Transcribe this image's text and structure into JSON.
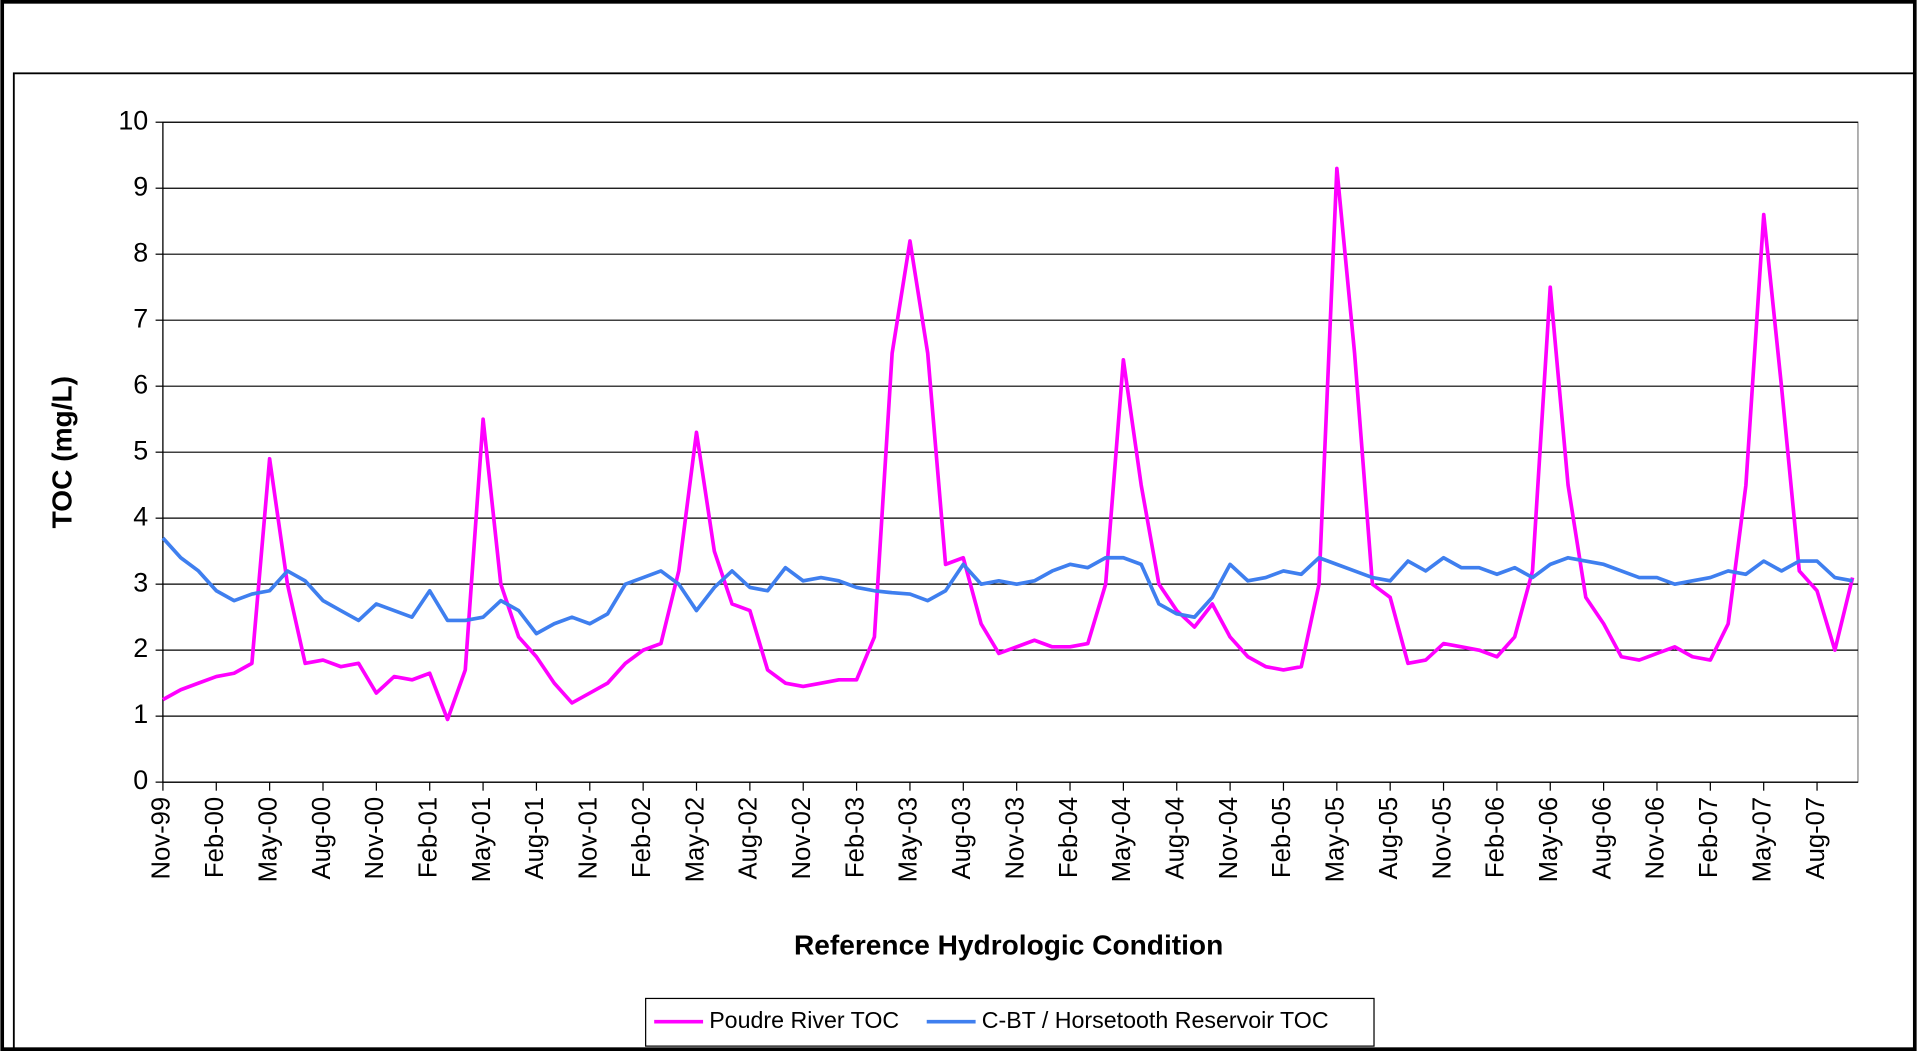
{
  "chart_data": {
    "type": "line",
    "x_label": "Reference Hydrologic Condition",
    "y_label": "TOC (mg/L)",
    "categories": [
      "Nov-99",
      null,
      null,
      "Feb-00",
      null,
      null,
      "May-00",
      null,
      null,
      "Aug-00",
      null,
      null,
      "Nov-00",
      null,
      null,
      "Feb-01",
      null,
      null,
      "May-01",
      null,
      null,
      "Aug-01",
      null,
      null,
      "Nov-01",
      null,
      null,
      "Feb-02",
      null,
      null,
      "May-02",
      null,
      null,
      "Aug-02",
      null,
      null,
      "Nov-02",
      null,
      null,
      "Feb-03",
      null,
      null,
      "May-03",
      null,
      null,
      "Aug-03",
      null,
      null,
      "Nov-03",
      null,
      null,
      "Feb-04",
      null,
      null,
      "May-04",
      null,
      null,
      "Aug-04",
      null,
      null,
      "Nov-04",
      null,
      null,
      "Feb-05",
      null,
      null,
      "May-05",
      null,
      null,
      "Aug-05",
      null,
      null,
      "Nov-05",
      null,
      null,
      "Feb-06",
      null,
      null,
      "May-06",
      null,
      null,
      "Aug-06",
      null,
      null,
      "Nov-06",
      null,
      null,
      "Feb-07",
      null,
      null,
      "May-07",
      null,
      null,
      "Aug-07",
      null,
      null
    ],
    "series": [
      {
        "name": "Poudre River TOC",
        "color": "#ff00ff",
        "values": [
          1.25,
          1.4,
          1.5,
          1.6,
          1.65,
          1.8,
          4.9,
          3.0,
          1.8,
          1.85,
          1.75,
          1.8,
          1.35,
          1.6,
          1.55,
          1.65,
          0.95,
          1.7,
          5.5,
          3.0,
          2.2,
          1.9,
          1.5,
          1.2,
          1.35,
          1.5,
          1.8,
          2.0,
          2.1,
          3.2,
          5.3,
          3.5,
          2.7,
          2.6,
          1.7,
          1.5,
          1.45,
          1.5,
          1.55,
          1.55,
          2.2,
          6.5,
          8.2,
          6.5,
          3.3,
          3.4,
          2.4,
          1.95,
          2.05,
          2.15,
          2.05,
          2.05,
          2.1,
          3.0,
          6.4,
          4.5,
          3.0,
          2.6,
          2.35,
          2.7,
          2.2,
          1.9,
          1.75,
          1.7,
          1.75,
          3.0,
          9.3,
          6.5,
          3.0,
          2.8,
          1.8,
          1.85,
          2.1,
          2.05,
          2.0,
          1.9,
          2.2,
          3.2,
          7.5,
          4.5,
          2.8,
          2.4,
          1.9,
          1.85,
          1.95,
          2.05,
          1.9,
          1.85,
          2.4,
          4.5,
          8.6,
          6.0,
          3.2,
          2.9,
          2.0,
          3.1
        ]
      },
      {
        "name": "C-BT / Horsetooth Reservoir TOC",
        "color": "#3f7fef",
        "values": [
          3.7,
          3.4,
          3.2,
          2.9,
          2.75,
          2.85,
          2.9,
          3.2,
          3.05,
          2.75,
          2.6,
          2.45,
          2.7,
          2.6,
          2.5,
          2.9,
          2.45,
          2.45,
          2.5,
          2.75,
          2.6,
          2.25,
          2.4,
          2.5,
          2.4,
          2.55,
          3.0,
          3.1,
          3.2,
          3.0,
          2.6,
          2.95,
          3.2,
          2.95,
          2.9,
          3.25,
          3.05,
          3.1,
          3.05,
          2.95,
          2.9,
          2.87,
          2.85,
          2.75,
          2.9,
          3.3,
          3.0,
          3.05,
          3.0,
          3.05,
          3.2,
          3.3,
          3.25,
          3.4,
          3.4,
          3.3,
          2.7,
          2.55,
          2.5,
          2.8,
          3.3,
          3.05,
          3.1,
          3.2,
          3.15,
          3.4,
          3.3,
          3.2,
          3.1,
          3.05,
          3.35,
          3.2,
          3.4,
          3.25,
          3.25,
          3.15,
          3.25,
          3.1,
          3.3,
          3.4,
          3.35,
          3.3,
          3.2,
          3.1,
          3.1,
          3.0,
          3.05,
          3.1,
          3.2,
          3.15,
          3.35,
          3.2,
          3.35,
          3.35,
          3.1,
          3.05
        ]
      }
    ],
    "ylim": [
      0,
      10
    ],
    "yticks": [
      0,
      1,
      2,
      3,
      4,
      5,
      6,
      7,
      8,
      9,
      10
    ],
    "grid": true,
    "legend": "bottom"
  }
}
